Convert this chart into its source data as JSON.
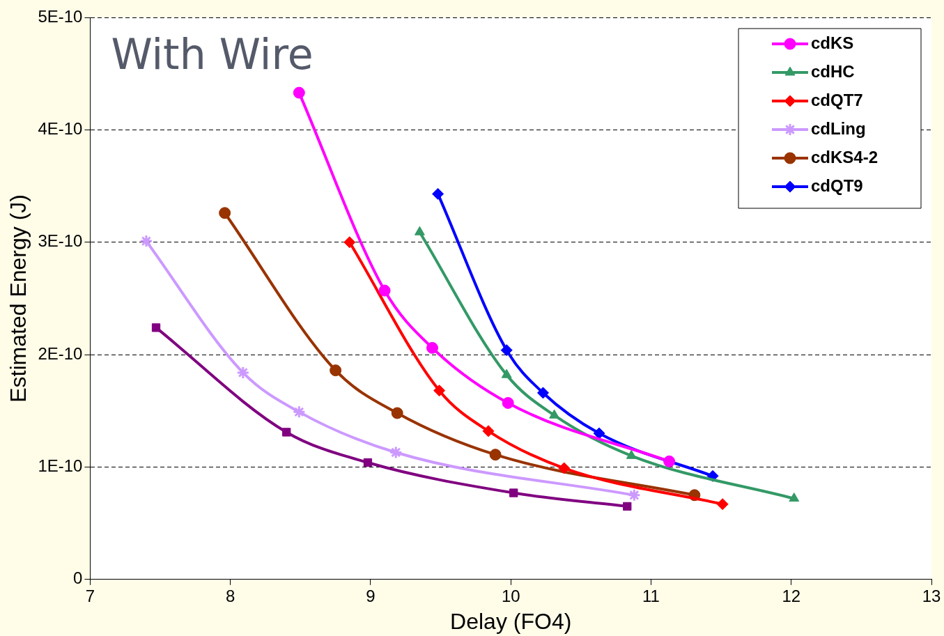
{
  "chart_data": {
    "type": "line",
    "xlabel": "Delay (FO4)",
    "ylabel": "Estimated Energy (J)",
    "annotations": [
      "With Wire"
    ],
    "xlim": [
      7,
      13
    ],
    "xticks": [
      7,
      8,
      9,
      10,
      11,
      12,
      13
    ],
    "ylim": [
      0,
      5e-10
    ],
    "yticks": [
      0,
      {
        "value": 1e-10,
        "label": "1E-10"
      },
      {
        "value": 2e-10,
        "label": "2E-10"
      },
      {
        "value": 3e-10,
        "label": "3E-10"
      },
      {
        "value": 4e-10,
        "label": "4E-10"
      },
      {
        "value": 5e-10,
        "label": "5E-10"
      }
    ],
    "grid": "y",
    "legend": "top right",
    "series": [
      {
        "name": "cdKS",
        "color": "#ff00ff",
        "marker": "circle",
        "x": [
          8.49,
          9.1,
          9.44,
          9.98,
          11.13
        ],
        "values": [
          4.33e-10,
          2.57e-10,
          2.06e-10,
          1.57e-10,
          1.05e-10
        ]
      },
      {
        "name": "cdHC",
        "color": "#339966",
        "marker": "triangle",
        "x": [
          9.35,
          9.97,
          10.31,
          10.86,
          12.02
        ],
        "values": [
          3.09e-10,
          1.82e-10,
          1.46e-10,
          1.1e-10,
          7.2e-11
        ]
      },
      {
        "name": "cdQT7",
        "color": "#ff0000",
        "marker": "diamond",
        "x": [
          8.85,
          9.49,
          9.84,
          10.38,
          11.51
        ],
        "values": [
          3e-10,
          1.68e-10,
          1.32e-10,
          9.9e-11,
          6.7e-11
        ]
      },
      {
        "color": "#800080",
        "marker": "square",
        "x": [
          7.47,
          8.4,
          8.98,
          10.02,
          10.83
        ],
        "values": [
          2.24e-10,
          1.31e-10,
          1.04e-10,
          7.7e-11,
          6.5e-11
        ]
      },
      {
        "name": "cdLing",
        "color": "#cc99ff",
        "marker": "cross",
        "x": [
          7.4,
          8.09,
          8.49,
          9.18,
          10.88
        ],
        "values": [
          3.01e-10,
          1.84e-10,
          1.49e-10,
          1.13e-10,
          7.5e-11
        ]
      },
      {
        "name": "cdKS4-2",
        "color": "#993300",
        "marker": "circle",
        "x": [
          7.96,
          8.75,
          9.19,
          9.89,
          11.31
        ],
        "values": [
          3.26e-10,
          1.86e-10,
          1.48e-10,
          1.11e-10,
          7.5e-11
        ]
      },
      {
        "name": "cdQT9",
        "color": "#0000ff",
        "marker": "diamond",
        "x": [
          9.48,
          9.97,
          10.23,
          10.63,
          11.44
        ],
        "values": [
          3.43e-10,
          2.04e-10,
          1.66e-10,
          1.3e-10,
          9.2e-11
        ]
      }
    ]
  }
}
